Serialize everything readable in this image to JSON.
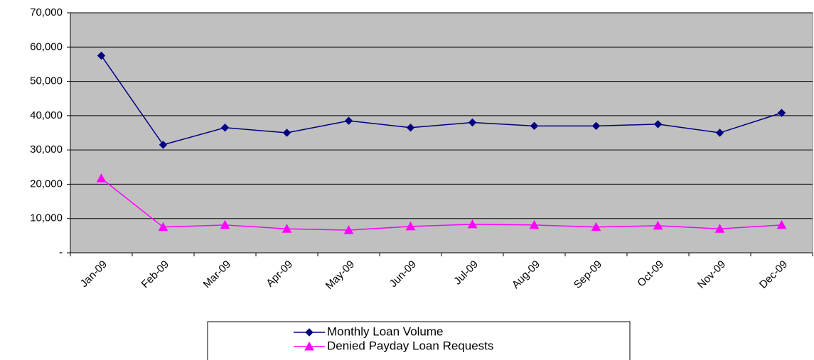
{
  "chart_data": {
    "type": "line",
    "categories": [
      "Jan-09",
      "Feb-09",
      "Mar-09",
      "Apr-09",
      "May-09",
      "Jun-09",
      "Jul-09",
      "Aug-09",
      "Sep-09",
      "Oct-09",
      "Nov-09",
      "Dec-09"
    ],
    "series": [
      {
        "name": "Monthly Loan Volume",
        "color": "#000080",
        "marker": "diamond",
        "values": [
          57500,
          31500,
          36500,
          35000,
          38500,
          36500,
          38000,
          37000,
          37000,
          37500,
          35000,
          40800
        ]
      },
      {
        "name": "Denied Payday Loan Requests",
        "color": "#ff00ff",
        "marker": "triangle",
        "values": [
          21700,
          7500,
          8100,
          7000,
          6600,
          7700,
          8300,
          8100,
          7500,
          7900,
          7000,
          8100
        ]
      }
    ],
    "ylim": [
      0,
      70000
    ],
    "yticks": [
      {
        "value": 0,
        "label": "-"
      },
      {
        "value": 10000,
        "label": "10,000"
      },
      {
        "value": 20000,
        "label": "20,000"
      },
      {
        "value": 30000,
        "label": "30,000"
      },
      {
        "value": 40000,
        "label": "40,000"
      },
      {
        "value": 50000,
        "label": "50,000"
      },
      {
        "value": 60000,
        "label": "60,000"
      },
      {
        "value": 70000,
        "label": "70,000"
      }
    ],
    "grid": true,
    "legend": "bottom"
  }
}
